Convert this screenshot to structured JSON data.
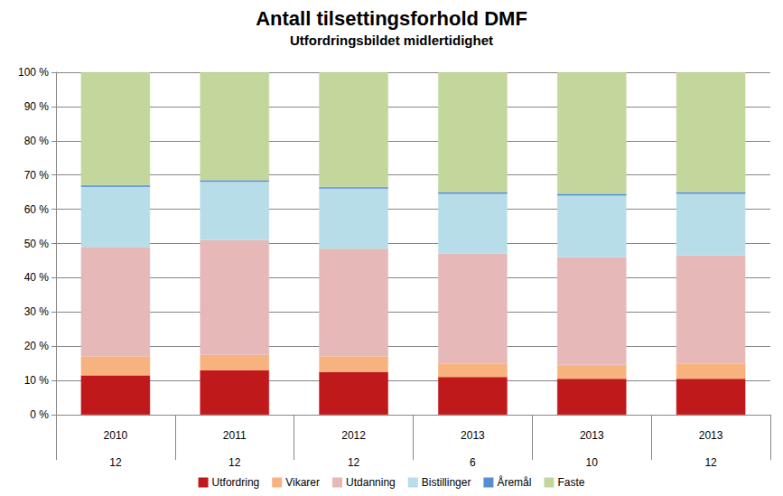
{
  "chart_data": {
    "type": "bar",
    "title": "Antall tilsettingsforhold DMF",
    "subtitle": "Utfordringsbildet midlertidighet",
    "categories": [
      "2010\n12",
      "2011\n12",
      "2012\n12",
      "2013\n6",
      "2013\n10",
      "2013\n12"
    ],
    "stacked": true,
    "grid": true,
    "legend": "bottom",
    "ylim": [
      0,
      100
    ],
    "yticks": [
      {
        "value": 0,
        "label": "0 %"
      },
      {
        "value": 10,
        "label": "10 %"
      },
      {
        "value": 20,
        "label": "20 %"
      },
      {
        "value": 30,
        "label": "30 %"
      },
      {
        "value": 40,
        "label": "40 %"
      },
      {
        "value": 50,
        "label": "50 %"
      },
      {
        "value": 60,
        "label": "60 %"
      },
      {
        "value": 70,
        "label": "70 %"
      },
      {
        "value": 80,
        "label": "80 %"
      },
      {
        "value": 90,
        "label": "90 %"
      },
      {
        "value": 100,
        "label": "100 %"
      }
    ],
    "series": [
      {
        "name": "Utfordring",
        "color": "#c0191c",
        "values": [
          11.5,
          13,
          12.5,
          11,
          10.5,
          10.5
        ]
      },
      {
        "name": "Vikarer",
        "color": "#f7b27e",
        "values": [
          5.5,
          4.5,
          4.5,
          4,
          4,
          4.5
        ]
      },
      {
        "name": "Utdanning",
        "color": "#e6b8b7",
        "values": [
          32,
          33.5,
          31.5,
          32,
          31.5,
          31.5
        ]
      },
      {
        "name": "Bistillinger",
        "color": "#b7dee8",
        "values": [
          17.5,
          17,
          17.5,
          17.5,
          18,
          18
        ]
      },
      {
        "name": "Åremål",
        "color": "#558ed5",
        "values": [
          0.5,
          0.5,
          0.5,
          0.5,
          0.5,
          0.5
        ]
      },
      {
        "name": "Faste",
        "color": "#c3d69b",
        "values": [
          33,
          31.5,
          33.5,
          35,
          35.5,
          35
        ]
      }
    ]
  }
}
